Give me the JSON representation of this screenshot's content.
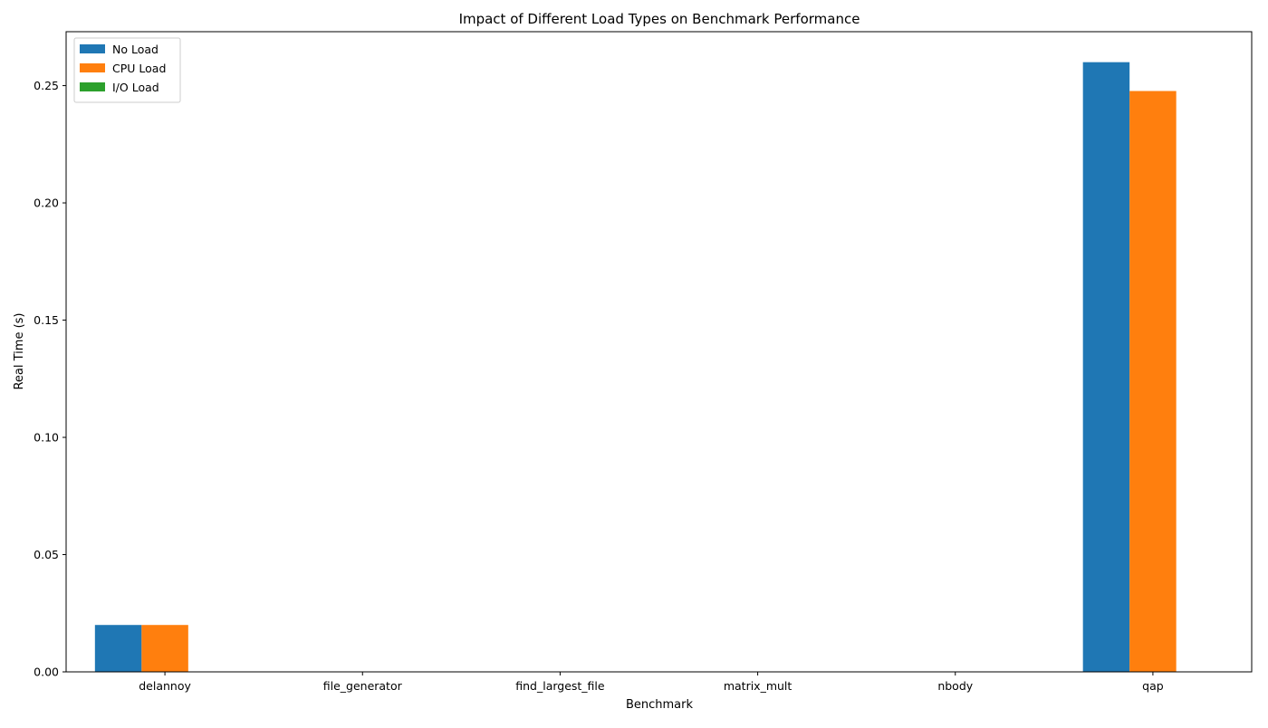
{
  "chart_data": {
    "type": "bar",
    "title": "Impact of Different Load Types on Benchmark Performance",
    "xlabel": "Benchmark",
    "ylabel": "Real Time (s)",
    "categories": [
      "delannoy",
      "file_generator",
      "find_largest_file",
      "matrix_mult",
      "nbody",
      "qap"
    ],
    "series": [
      {
        "name": "No Load",
        "color": "#1f77b4",
        "values": [
          0.02,
          0,
          0,
          0,
          0,
          0.26
        ]
      },
      {
        "name": "CPU Load",
        "color": "#ff7f0e",
        "values": [
          0.02,
          0,
          0,
          0,
          0,
          0.2477
        ]
      },
      {
        "name": "I/O Load",
        "color": "#2ca02c",
        "values": [
          0,
          0,
          0,
          0,
          0,
          0
        ]
      }
    ],
    "ylim": [
      0,
      0.273
    ],
    "yticks": [
      0.0,
      0.05,
      0.1,
      0.15,
      0.2,
      0.25
    ],
    "ytick_labels": [
      "0.00",
      "0.05",
      "0.10",
      "0.15",
      "0.20",
      "0.25"
    ],
    "grid": false,
    "legend_position": "top-left"
  }
}
